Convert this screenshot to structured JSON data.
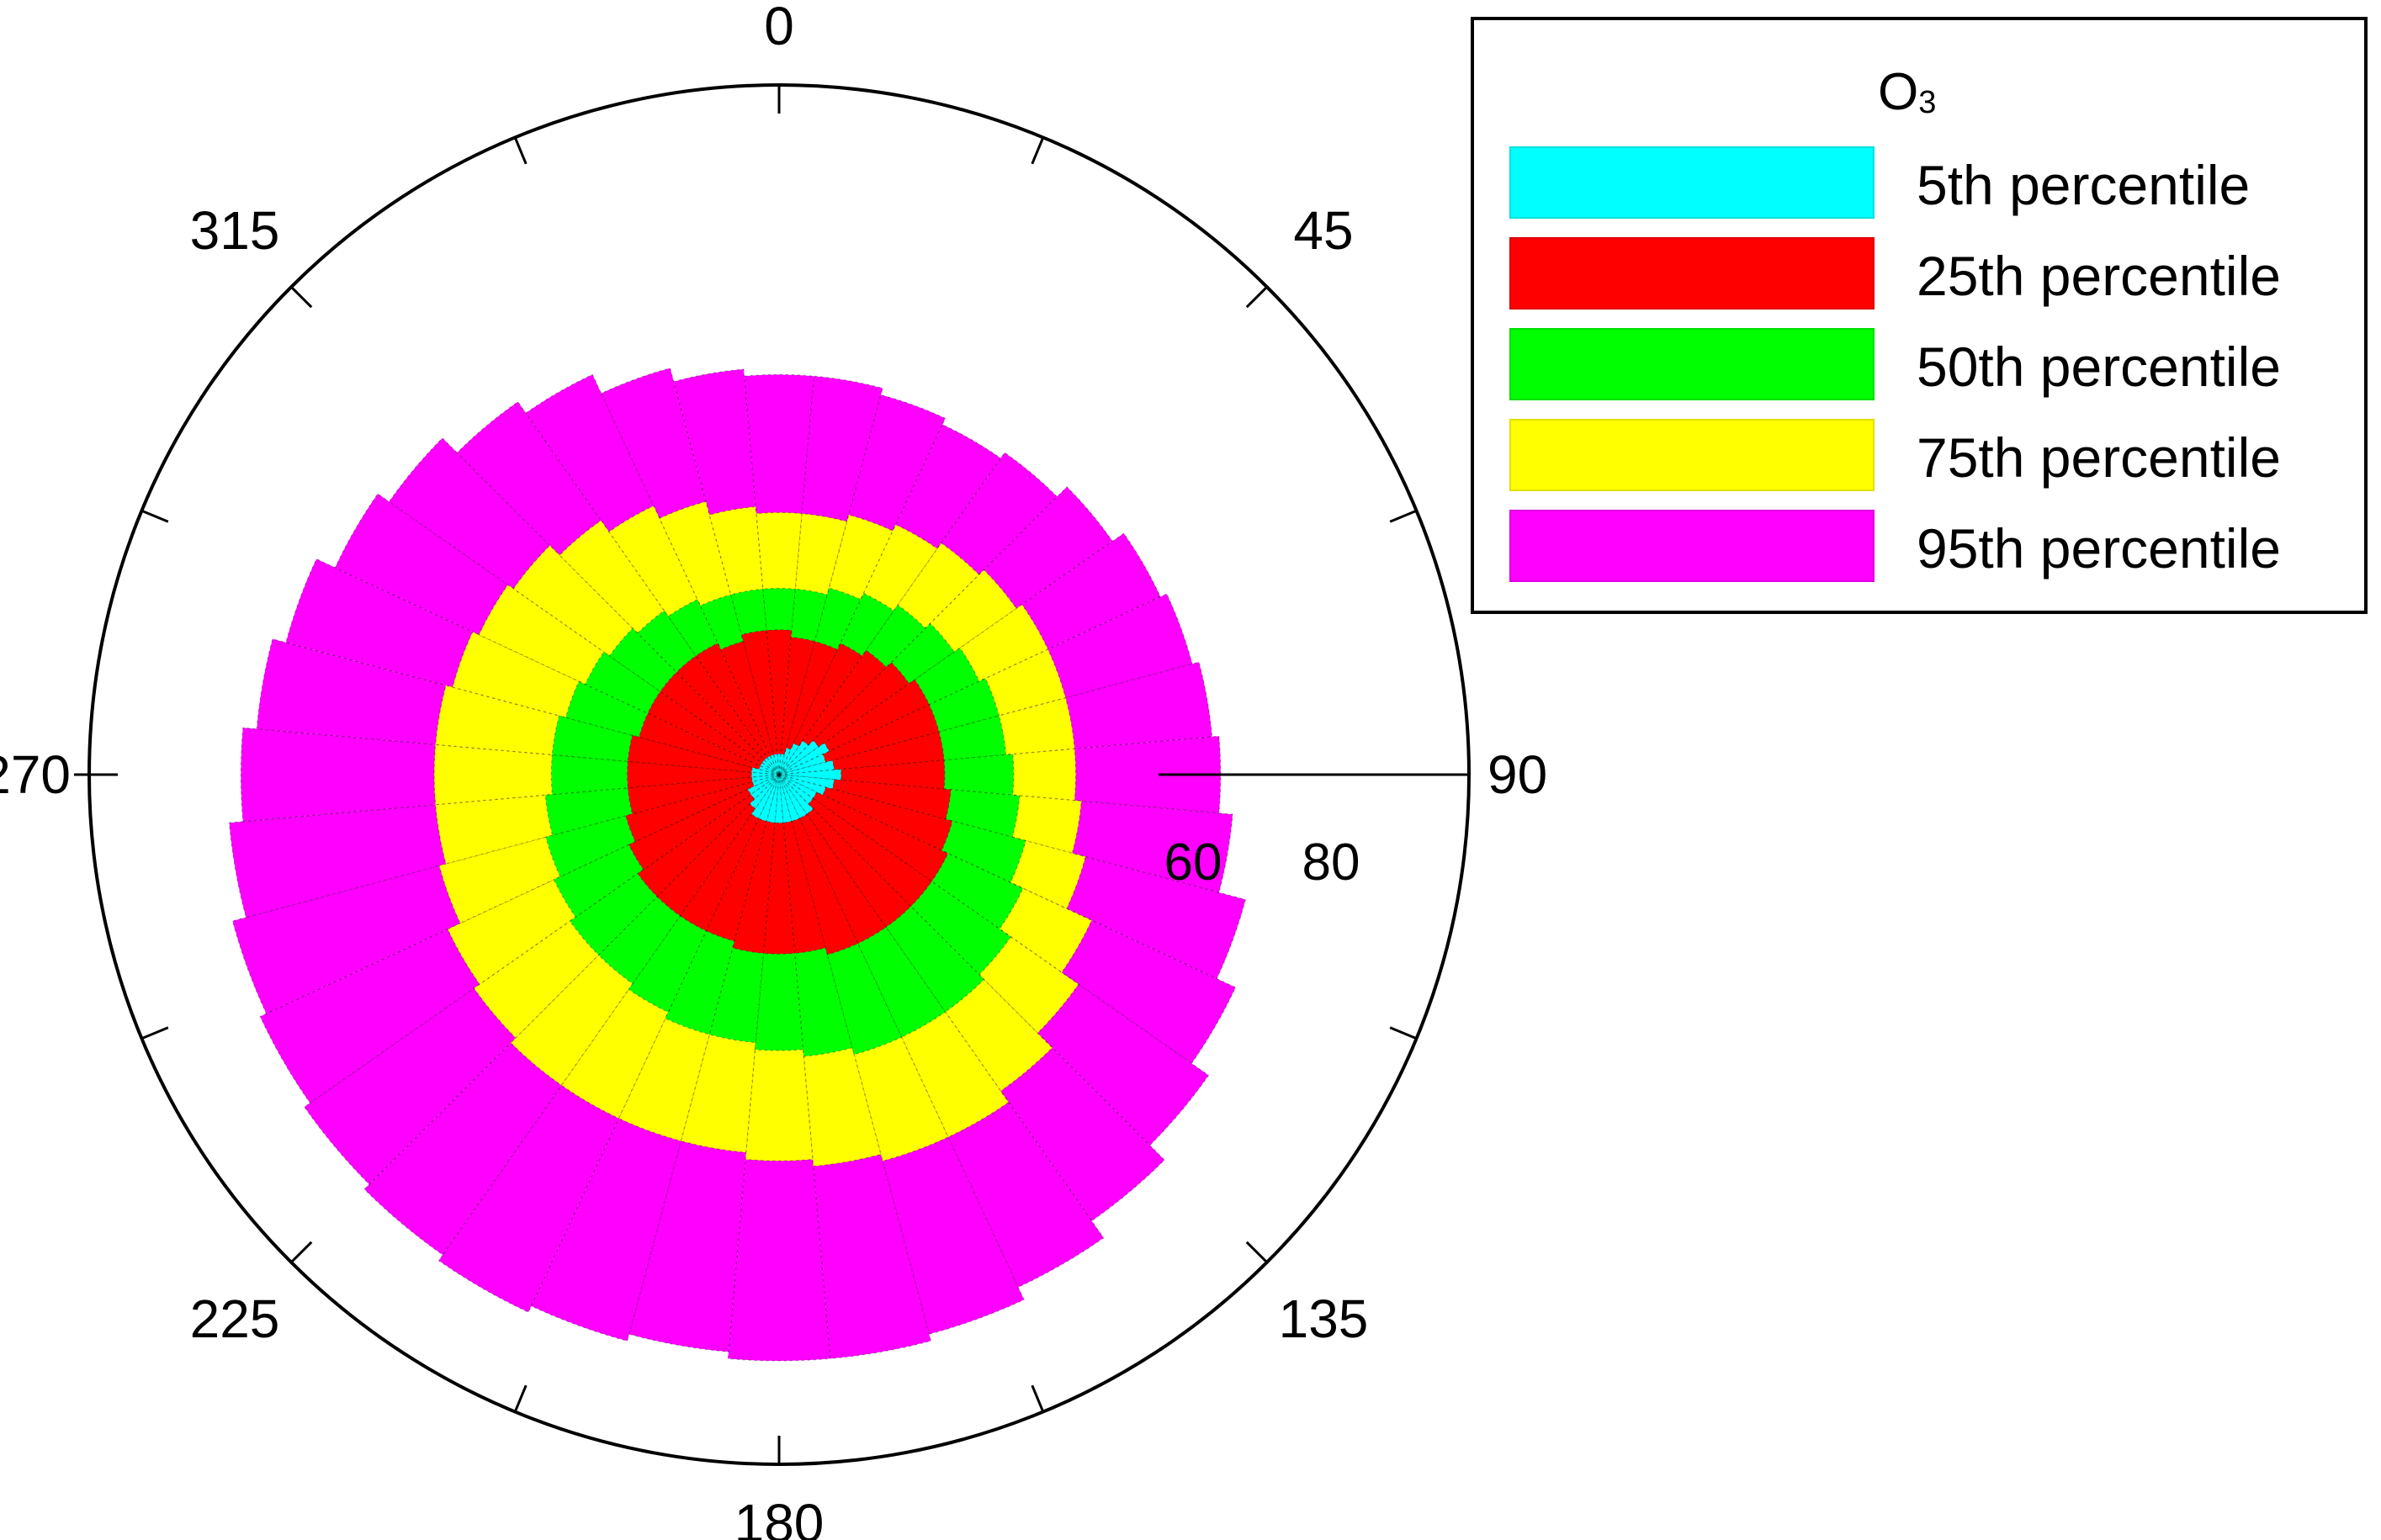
{
  "chart_data": {
    "type": "polar_bar",
    "angle_unit": "degrees",
    "angle_tick_labels": [
      "0",
      "45",
      "90",
      "135",
      "180",
      "225",
      "270",
      "315"
    ],
    "radial_tick_labels": [
      "60",
      "80"
    ],
    "radial_max": 100,
    "sectors": 36,
    "sector_width_deg": 10,
    "directions": [
      0,
      10,
      20,
      30,
      40,
      50,
      60,
      70,
      80,
      90,
      100,
      110,
      120,
      130,
      140,
      150,
      160,
      170,
      180,
      190,
      200,
      210,
      220,
      230,
      240,
      250,
      260,
      270,
      280,
      290,
      300,
      310,
      320,
      330,
      340,
      350
    ],
    "series": [
      {
        "name": "95th percentile",
        "color": "#ff00ff",
        "values": [
          58,
          58,
          57,
          56,
          57,
          59,
          61,
          62,
          63,
          64,
          66,
          70,
          73,
          76,
          79,
          82,
          84,
          85,
          85,
          84,
          85,
          86,
          85,
          84,
          83,
          82,
          80,
          78,
          76,
          74,
          71,
          69,
          66,
          64,
          61,
          59
        ]
      },
      {
        "name": "75th percentile",
        "color": "#ffff00",
        "values": [
          38,
          38,
          39,
          40,
          41,
          42,
          43,
          43,
          43,
          43,
          44,
          46,
          50,
          53,
          56,
          58,
          58,
          57,
          56,
          55,
          55,
          55,
          55,
          54,
          53,
          51,
          50,
          50,
          50,
          49,
          48,
          47,
          45,
          43,
          41,
          39
        ]
      },
      {
        "name": "50th percentile",
        "color": "#00ff00",
        "values": [
          27,
          27,
          28,
          29,
          30,
          31,
          32,
          33,
          33,
          34,
          35,
          37,
          39,
          41,
          42,
          42,
          42,
          41,
          40,
          39,
          39,
          38,
          37,
          37,
          36,
          35,
          34,
          33,
          33,
          32,
          31,
          30,
          29,
          28,
          27,
          27
        ]
      },
      {
        "name": "25th percentile",
        "color": "#ff0000",
        "values": [
          21,
          20,
          20,
          21,
          22,
          23,
          24,
          24,
          24,
          24,
          25,
          26,
          27,
          27,
          27,
          27,
          27,
          26,
          26,
          26,
          25,
          25,
          25,
          25,
          24,
          23,
          22,
          22,
          22,
          21,
          21,
          21,
          21,
          21,
          20,
          21
        ]
      },
      {
        "name": "5th percentile",
        "color": "#00ffff",
        "values": [
          3,
          3,
          4,
          5,
          6,
          7,
          8,
          7,
          8,
          9,
          8,
          7,
          6,
          6,
          7,
          7,
          7,
          7,
          7,
          7,
          7,
          7,
          6,
          5,
          5,
          4,
          4,
          4,
          4,
          3,
          3,
          3,
          3,
          3,
          3,
          3
        ]
      }
    ],
    "legend": {
      "title": "O",
      "title_subscript": "3",
      "placement": "top-right",
      "entries": [
        "5th percentile",
        "25th percentile",
        "50th percentile",
        "75th percentile",
        "95th percentile"
      ],
      "colors": [
        "#00ffff",
        "#ff0000",
        "#00ff00",
        "#ffff00",
        "#ff00ff"
      ]
    }
  }
}
